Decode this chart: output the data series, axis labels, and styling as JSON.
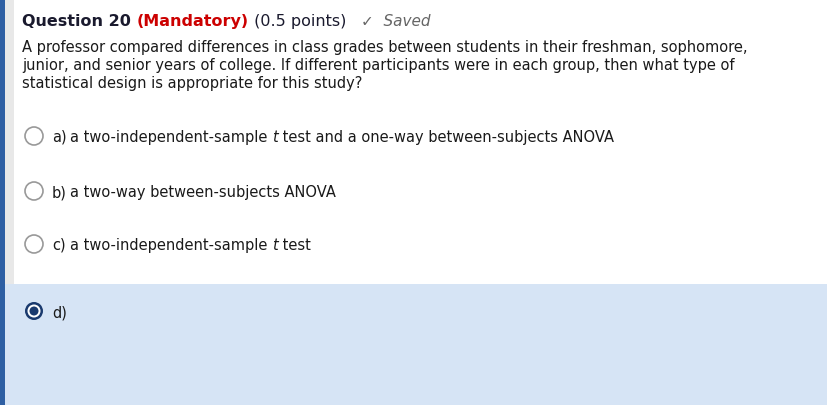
{
  "bg_color": "#e8e8e8",
  "white_bg": "#ffffff",
  "title_normal": "Question 20 ",
  "title_mandatory": "(Mandatory)",
  "title_points": " (0.5 points)",
  "title_saved": "✓  Saved",
  "question_lines": [
    "A professor compared differences in class grades between students in their freshman, sophomore,",
    "junior, and senior years of college. If different participants were in each group, then what type of",
    "statistical design is appropriate for this study?"
  ],
  "options": [
    {
      "label": "a)",
      "segments": [
        {
          "text": "a two-independent-sample ",
          "italic": false
        },
        {
          "text": "t",
          "italic": true
        },
        {
          "text": " test and a one-way between-subjects ANOVA",
          "italic": false
        }
      ],
      "selected": false
    },
    {
      "label": "b)",
      "segments": [
        {
          "text": "a two-way between-subjects ANOVA",
          "italic": false
        }
      ],
      "selected": false
    },
    {
      "label": "c)",
      "segments": [
        {
          "text": "a two-independent-sample ",
          "italic": false
        },
        {
          "text": "t",
          "italic": true
        },
        {
          "text": " test",
          "italic": false
        }
      ],
      "selected": false
    },
    {
      "label": "d)",
      "segments": [],
      "selected": true
    }
  ],
  "title_color": "#1a1a2e",
  "mandatory_color": "#cc0000",
  "points_color": "#1a1a2e",
  "saved_color": "#666666",
  "question_color": "#1a1a1a",
  "option_color": "#1a1a1a",
  "radio_edge_color": "#999999",
  "radio_selected_outer": "#1a3a6e",
  "radio_selected_inner": "#1a3a6e",
  "left_bar_color": "#2e5fa3",
  "answer_bg_color": "#d6e4f5",
  "title_fontsize": 11.5,
  "question_fontsize": 10.5,
  "option_fontsize": 10.5,
  "figwidth": 8.28,
  "figheight": 4.06,
  "dpi": 100
}
